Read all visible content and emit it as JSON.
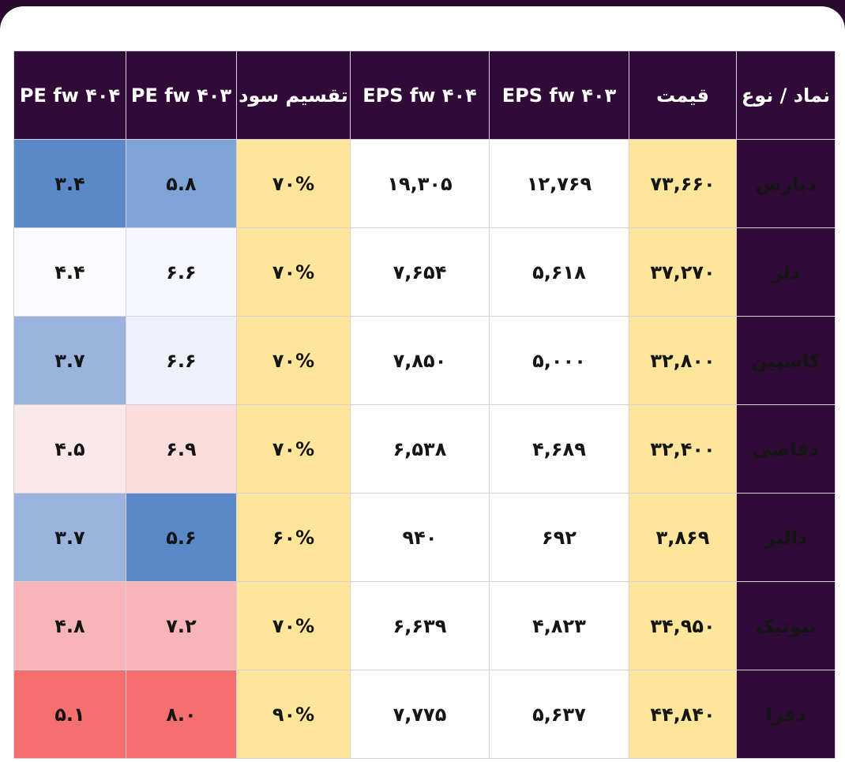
{
  "table": {
    "headers": [
      "نماد / نوع",
      "قیمت",
      "EPS fw ۴۰۳",
      "EPS fw ۴۰۴",
      "تقسیم سود",
      "PE fw ۴۰۳",
      "PE fw ۴۰۴"
    ],
    "rows": [
      {
        "symbol": "دپارس",
        "price": "۷۳,۶۶۰",
        "eps403": "۱۲,۷۶۹",
        "eps404": "۱۹,۳۰۵",
        "dividend": "۷۰%",
        "pe403": "۵.۸",
        "pe404": "۳.۴",
        "pe403_color": "#7ea4d8",
        "pe404_color": "#5b88c8"
      },
      {
        "symbol": "دلر",
        "price": "۳۷,۲۷۰",
        "eps403": "۵,۶۱۸",
        "eps404": "۷,۶۵۴",
        "dividend": "۷۰%",
        "pe403": "۶.۶",
        "pe404": "۴.۴",
        "pe403_color": "#f6f7fc",
        "pe404_color": "#fbfbfd"
      },
      {
        "symbol": "کاسپین",
        "price": "۳۲,۸۰۰",
        "eps403": "۵,۰۰۰",
        "eps404": "۷,۸۵۰",
        "dividend": "۷۰%",
        "pe403": "۶.۶",
        "pe404": "۳.۷",
        "pe403_color": "#eef1fa",
        "pe404_color": "#9ab4de"
      },
      {
        "symbol": "دقاضی",
        "price": "۳۲,۴۰۰",
        "eps403": "۴,۶۸۹",
        "eps404": "۶,۵۳۸",
        "dividend": "۷۰%",
        "pe403": "۶.۹",
        "pe404": "۴.۵",
        "pe403_color": "#fbdcdd",
        "pe404_color": "#fbe8ea"
      },
      {
        "symbol": "دالبر",
        "price": "۳,۸۶۹",
        "eps403": "۶۹۲",
        "eps404": "۹۴۰",
        "dividend": "۶۰%",
        "pe403": "۵.۶",
        "pe404": "۳.۷",
        "pe403_color": "#5b88c8",
        "pe404_color": "#9ab4de"
      },
      {
        "symbol": "بیوتیک",
        "price": "۳۴,۹۵۰",
        "eps403": "۴,۸۲۳",
        "eps404": "۶,۶۳۹",
        "dividend": "۷۰%",
        "pe403": "۷.۲",
        "pe404": "۴.۸",
        "pe403_color": "#f8b4b6",
        "pe404_color": "#f8b4b6"
      },
      {
        "symbol": "دفرا",
        "price": "۴۴,۸۴۰",
        "eps403": "۵,۶۳۷",
        "eps404": "۷,۷۷۵",
        "dividend": "۹۰%",
        "pe403": "۸.۰",
        "pe404": "۵.۱",
        "pe403_color": "#f66f6f",
        "pe404_color": "#f66f6f"
      }
    ]
  },
  "colors": {
    "header_bg": "#300b38",
    "price_bg": "#fde69a",
    "dividend_bg": "#fde69a"
  }
}
